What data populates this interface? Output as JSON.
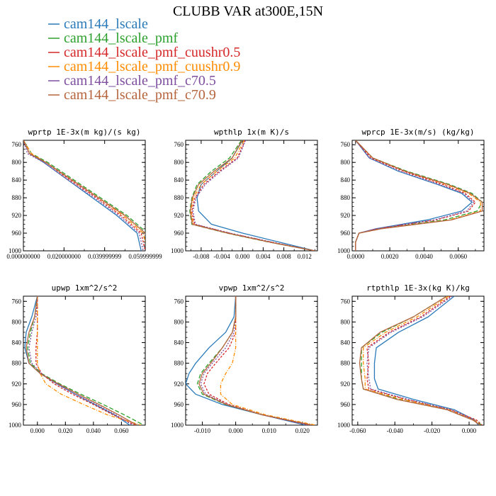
{
  "title": "CLUBB VAR at300E,15N",
  "legend": [
    {
      "label": "cam144_lscale",
      "color": "#2a7ab9",
      "dash": ""
    },
    {
      "label": "cam144_lscale_pmf",
      "color": "#2ca02c",
      "dash": "6,3"
    },
    {
      "label": "cam144_lscale_pmf_cuushr0.5",
      "color": "#d62728",
      "dash": "3,2"
    },
    {
      "label": "cam144_lscale_pmf_cuushr0.9",
      "color": "#ff8c00",
      "dash": "5,2,1,2"
    },
    {
      "label": "cam144_lscale_pmf_c70.5",
      "color": "#7e4f9f",
      "dash": "2,2"
    },
    {
      "label": "cam144_lscale_pmf_c70.9",
      "color": "#b5643c",
      "dash": ""
    }
  ],
  "chart_data": [
    {
      "type": "line",
      "title": "wprtp  1E-3x(m kg)/(s kg)",
      "xlim": [
        0.0,
        0.06
      ],
      "xticks": [
        0.0,
        0.02,
        0.04,
        0.06
      ],
      "xtick_labels": [
        "0.000000000",
        "0.020000000",
        "0.039999999",
        "0.059999999"
      ],
      "ylim": [
        1000,
        750
      ],
      "yticks": [
        760,
        800,
        840,
        880,
        920,
        960,
        1000
      ],
      "y": [
        750,
        780,
        800,
        840,
        880,
        920,
        960,
        1000
      ],
      "series": [
        {
          "name": "cam144_lscale",
          "values": [
            0.0,
            0.003,
            0.01,
            0.022,
            0.034,
            0.046,
            0.056,
            0.058
          ]
        },
        {
          "name": "cam144_lscale_pmf",
          "values": [
            0.0,
            0.004,
            0.012,
            0.025,
            0.038,
            0.051,
            0.061,
            0.063
          ]
        },
        {
          "name": "cam144_lscale_pmf_cuushr0.5",
          "values": [
            0.0,
            0.003,
            0.011,
            0.023,
            0.036,
            0.048,
            0.058,
            0.06
          ]
        },
        {
          "name": "cam144_lscale_pmf_cuushr0.9",
          "values": [
            0.0,
            0.004,
            0.011,
            0.024,
            0.037,
            0.049,
            0.059,
            0.061
          ]
        },
        {
          "name": "cam144_lscale_pmf_c70.5",
          "values": [
            0.0,
            0.002,
            0.01,
            0.022,
            0.035,
            0.047,
            0.057,
            0.059
          ]
        },
        {
          "name": "cam144_lscale_pmf_c70.9",
          "values": [
            0.0,
            0.003,
            0.011,
            0.024,
            0.037,
            0.05,
            0.06,
            0.062
          ]
        }
      ]
    },
    {
      "type": "line",
      "title": "wpthlp  1x(m K)/s",
      "xlim": [
        -0.011,
        0.0145
      ],
      "xticks": [
        -0.008,
        -0.004,
        0.0,
        0.004,
        0.008,
        0.012
      ],
      "xtick_labels": [
        "-0.008",
        "-0.004",
        "0.000",
        "0.004",
        "0.008",
        "0.012"
      ],
      "ylim": [
        1000,
        750
      ],
      "yticks": [
        760,
        800,
        840,
        880,
        920,
        960,
        1000
      ],
      "y": [
        750,
        790,
        820,
        850,
        880,
        910,
        940,
        960,
        980,
        1000
      ],
      "series": [
        {
          "name": "cam144_lscale",
          "values": [
            0.0,
            -0.002,
            -0.005,
            -0.008,
            -0.0088,
            -0.0085,
            -0.006,
            0.0,
            0.007,
            0.014
          ]
        },
        {
          "name": "cam144_lscale_pmf",
          "values": [
            -0.0002,
            -0.0025,
            -0.006,
            -0.0088,
            -0.0098,
            -0.0102,
            -0.0098,
            -0.003,
            0.005,
            0.014
          ]
        },
        {
          "name": "cam144_lscale_pmf_cuushr0.5",
          "values": [
            0.0005,
            -0.001,
            -0.0045,
            -0.0075,
            -0.0092,
            -0.0098,
            -0.0093,
            -0.0025,
            0.0055,
            0.014
          ]
        },
        {
          "name": "cam144_lscale_pmf_cuushr0.9",
          "values": [
            0.0003,
            -0.0015,
            -0.005,
            -0.008,
            -0.0095,
            -0.01,
            -0.0095,
            -0.0028,
            0.0052,
            0.014
          ]
        },
        {
          "name": "cam144_lscale_pmf_c70.5",
          "values": [
            0.0006,
            -0.0008,
            -0.0042,
            -0.0072,
            -0.009,
            -0.0096,
            -0.0091,
            -0.0024,
            0.0056,
            0.014
          ]
        },
        {
          "name": "cam144_lscale_pmf_c70.9",
          "values": [
            -0.0001,
            -0.002,
            -0.0055,
            -0.0085,
            -0.0097,
            -0.0101,
            -0.0097,
            -0.0029,
            0.0051,
            0.014
          ]
        }
      ]
    },
    {
      "type": "line",
      "title": "wprcp  1E-3x(m/s) (kg/kg)",
      "xlim": [
        -0.0002,
        0.0075
      ],
      "xticks": [
        0.0,
        0.002,
        0.004,
        0.006
      ],
      "xtick_labels": [
        "0.0000",
        "0.0020",
        "0.0040",
        "0.0060"
      ],
      "ylim": [
        1000,
        750
      ],
      "yticks": [
        760,
        800,
        840,
        880,
        920,
        960,
        1000
      ],
      "y": [
        750,
        790,
        820,
        850,
        870,
        890,
        910,
        930,
        950,
        960,
        980,
        1000
      ],
      "series": [
        {
          "name": "cam144_lscale",
          "values": [
            0.0,
            0.0008,
            0.0025,
            0.0048,
            0.0062,
            0.0068,
            0.0062,
            0.0042,
            0.0012,
            0.0002,
            0.0,
            0.0
          ]
        },
        {
          "name": "cam144_lscale_pmf",
          "values": [
            0.0,
            0.001,
            0.003,
            0.0055,
            0.0068,
            0.0074,
            0.0071,
            0.0052,
            0.0014,
            0.0002,
            0.0,
            0.0
          ]
        },
        {
          "name": "cam144_lscale_pmf_cuushr0.5",
          "values": [
            0.0,
            0.0009,
            0.0028,
            0.0051,
            0.0064,
            0.007,
            0.0066,
            0.0047,
            0.0013,
            0.0002,
            0.0,
            0.0
          ]
        },
        {
          "name": "cam144_lscale_pmf_cuushr0.9",
          "values": [
            0.0,
            0.001,
            0.0029,
            0.0053,
            0.0066,
            0.0073,
            0.0073,
            0.0055,
            0.0015,
            0.0002,
            0.0,
            0.0
          ]
        },
        {
          "name": "cam144_lscale_pmf_c70.5",
          "values": [
            0.0,
            0.0008,
            0.0026,
            0.0049,
            0.0063,
            0.0069,
            0.0065,
            0.0046,
            0.0012,
            0.0002,
            0.0,
            0.0
          ]
        },
        {
          "name": "cam144_lscale_pmf_c70.9",
          "values": [
            0.0,
            0.001,
            0.0029,
            0.0054,
            0.0067,
            0.0074,
            0.0074,
            0.0056,
            0.0015,
            0.0002,
            0.0,
            0.0
          ]
        }
      ]
    },
    {
      "type": "line",
      "title": "upwp  1xm^2/s^2",
      "xlim": [
        -0.01,
        0.077
      ],
      "xticks": [
        0.0,
        0.02,
        0.04,
        0.06
      ],
      "xtick_labels": [
        "0.000",
        "0.020",
        "0.040",
        "0.060"
      ],
      "ylim": [
        1000,
        750
      ],
      "yticks": [
        760,
        800,
        840,
        880,
        920,
        960,
        1000
      ],
      "y": [
        750,
        790,
        820,
        850,
        880,
        900,
        920,
        940,
        960,
        980,
        1000
      ],
      "series": [
        {
          "name": "cam144_lscale",
          "values": [
            0.0,
            -0.004,
            -0.008,
            -0.009,
            -0.006,
            0.002,
            0.014,
            0.027,
            0.041,
            0.055,
            0.066
          ]
        },
        {
          "name": "cam144_lscale_pmf",
          "values": [
            0.0,
            -0.002,
            -0.005,
            -0.007,
            -0.005,
            0.003,
            0.016,
            0.031,
            0.047,
            0.062,
            0.076
          ]
        },
        {
          "name": "cam144_lscale_pmf_cuushr0.5",
          "values": [
            0.0,
            0.0,
            0.0,
            -0.001,
            -0.001,
            0.003,
            0.012,
            0.025,
            0.04,
            0.054,
            0.07
          ]
        },
        {
          "name": "cam144_lscale_pmf_cuushr0.9",
          "values": [
            0.0,
            0.0,
            0.0,
            0.0,
            0.0,
            0.002,
            0.006,
            0.017,
            0.033,
            0.05,
            0.074
          ]
        },
        {
          "name": "cam144_lscale_pmf_c70.5",
          "values": [
            0.0,
            -0.001,
            -0.004,
            -0.006,
            -0.004,
            0.003,
            0.014,
            0.027,
            0.042,
            0.056,
            0.068
          ]
        },
        {
          "name": "cam144_lscale_pmf_c70.9",
          "values": [
            0.0,
            -0.002,
            -0.006,
            -0.008,
            -0.006,
            0.002,
            0.015,
            0.029,
            0.044,
            0.058,
            0.071
          ]
        }
      ]
    },
    {
      "type": "line",
      "title": "vpwp  1xm^2/s^2",
      "xlim": [
        -0.015,
        0.0245
      ],
      "xticks": [
        -0.01,
        0.0,
        0.01,
        0.02
      ],
      "xtick_labels": [
        "-0.010",
        "0.000",
        "0.010",
        "0.020"
      ],
      "ylim": [
        1000,
        750
      ],
      "yticks": [
        760,
        800,
        840,
        880,
        920,
        960,
        1000
      ],
      "y": [
        750,
        790,
        820,
        850,
        880,
        900,
        920,
        940,
        960,
        980,
        1000
      ],
      "series": [
        {
          "name": "cam144_lscale",
          "values": [
            0.0,
            -0.0005,
            -0.003,
            -0.008,
            -0.012,
            -0.014,
            -0.015,
            -0.012,
            -0.004,
            0.008,
            0.021
          ]
        },
        {
          "name": "cam144_lscale_pmf",
          "values": [
            0.0,
            0.0,
            -0.001,
            -0.004,
            -0.008,
            -0.0105,
            -0.0115,
            -0.01,
            -0.003,
            0.008,
            0.023
          ]
        },
        {
          "name": "cam144_lscale_pmf_cuushr0.5",
          "values": [
            0.0,
            0.0,
            0.0,
            -0.002,
            -0.006,
            -0.0085,
            -0.0095,
            -0.008,
            -0.002,
            0.008,
            0.022
          ]
        },
        {
          "name": "cam144_lscale_pmf_cuushr0.9",
          "values": [
            0.0,
            0.0,
            0.0,
            0.0,
            -0.001,
            -0.003,
            -0.0045,
            -0.0045,
            -0.001,
            0.009,
            0.024
          ]
        },
        {
          "name": "cam144_lscale_pmf_c70.5",
          "values": [
            0.0,
            0.0,
            -0.0005,
            -0.003,
            -0.007,
            -0.0095,
            -0.0105,
            -0.009,
            -0.0025,
            0.008,
            0.022
          ]
        },
        {
          "name": "cam144_lscale_pmf_c70.9",
          "values": [
            0.0,
            0.0,
            -0.001,
            -0.004,
            -0.0075,
            -0.01,
            -0.011,
            -0.0095,
            -0.0028,
            0.008,
            0.023
          ]
        }
      ]
    },
    {
      "type": "line",
      "title": "rtpthlp  1E-3x(kg K)/kg",
      "xlim": [
        -0.063,
        0.008
      ],
      "xticks": [
        -0.06,
        -0.04,
        -0.02,
        0.0
      ],
      "xtick_labels": [
        "-0.060",
        "-0.040",
        "-0.020",
        "0.000"
      ],
      "ylim": [
        1000,
        750
      ],
      "yticks": [
        760,
        800,
        840,
        880,
        920,
        960,
        1000
      ],
      "y": [
        750,
        790,
        820,
        850,
        880,
        910,
        930,
        950,
        970,
        990,
        1000
      ],
      "series": [
        {
          "name": "cam144_lscale",
          "values": [
            -0.008,
            -0.022,
            -0.038,
            -0.05,
            -0.051,
            -0.051,
            -0.049,
            -0.03,
            -0.008,
            0.003,
            0.005
          ]
        },
        {
          "name": "cam144_lscale_pmf",
          "values": [
            -0.012,
            -0.03,
            -0.047,
            -0.058,
            -0.058,
            -0.058,
            -0.057,
            -0.038,
            -0.012,
            0.002,
            0.007
          ]
        },
        {
          "name": "cam144_lscale_pmf_cuushr0.5",
          "values": [
            -0.01,
            -0.026,
            -0.043,
            -0.055,
            -0.054,
            -0.055,
            -0.054,
            -0.034,
            -0.01,
            0.004,
            0.007
          ]
        },
        {
          "name": "cam144_lscale_pmf_cuushr0.9",
          "values": [
            -0.011,
            -0.028,
            -0.045,
            -0.057,
            -0.057,
            -0.056,
            -0.056,
            -0.036,
            -0.011,
            0.003,
            0.006
          ]
        },
        {
          "name": "cam144_lscale_pmf_c70.5",
          "values": [
            -0.009,
            -0.025,
            -0.042,
            -0.054,
            -0.055,
            -0.054,
            -0.053,
            -0.033,
            -0.01,
            0.003,
            0.005
          ]
        },
        {
          "name": "cam144_lscale_pmf_c70.9",
          "values": [
            -0.012,
            -0.03,
            -0.048,
            -0.058,
            -0.059,
            -0.058,
            -0.057,
            -0.039,
            -0.012,
            0.002,
            0.006
          ]
        }
      ]
    }
  ]
}
